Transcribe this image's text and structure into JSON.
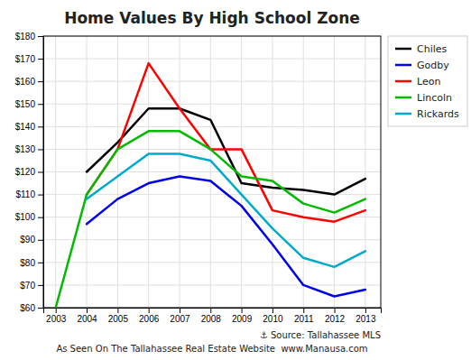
{
  "chart_data": {
    "type": "line",
    "title": "Home Values By High School Zone",
    "x": [
      2003,
      2004,
      2005,
      2006,
      2007,
      2008,
      2009,
      2010,
      2011,
      2012,
      2013
    ],
    "series": [
      {
        "name": "Chiles",
        "color": "#000000",
        "values": [
          null,
          120,
          133,
          148,
          148,
          143,
          115,
          113,
          112,
          110,
          117
        ]
      },
      {
        "name": "Godby",
        "color": "#0000ee",
        "values": [
          null,
          97,
          108,
          115,
          118,
          116,
          105,
          88,
          70,
          65,
          68
        ]
      },
      {
        "name": "Leon",
        "color": "#ff0000",
        "values": [
          null,
          110,
          130,
          168,
          148,
          130,
          130,
          103,
          100,
          98,
          103
        ]
      },
      {
        "name": "Lincoln",
        "color": "#00bb00",
        "values": [
          60,
          110,
          130,
          138,
          138,
          130,
          118,
          116,
          106,
          102,
          108
        ]
      },
      {
        "name": "Rickards",
        "color": "#00aacc",
        "values": [
          null,
          108,
          118,
          128,
          128,
          125,
          110,
          95,
          82,
          78,
          85
        ]
      }
    ],
    "xlim": [
      2002.6,
      2013.5
    ],
    "xticks": [
      2003,
      2004,
      2005,
      2006,
      2007,
      2008,
      2009,
      2010,
      2011,
      2012,
      2013
    ],
    "ylim": [
      60,
      180
    ],
    "yticks": [
      {
        "value": 60,
        "label": "$60"
      },
      {
        "value": 70,
        "label": "$70"
      },
      {
        "value": 80,
        "label": "$80"
      },
      {
        "value": 90,
        "label": "$90"
      },
      {
        "value": 100,
        "label": "$100"
      },
      {
        "value": 110,
        "label": "$110"
      },
      {
        "value": 120,
        "label": "$120"
      },
      {
        "value": 130,
        "label": "$130"
      },
      {
        "value": 140,
        "label": "$140"
      },
      {
        "value": 150,
        "label": "$150"
      },
      {
        "value": 160,
        "label": "$160"
      },
      {
        "value": 170,
        "label": "$170"
      },
      {
        "value": 180,
        "label": "$180"
      }
    ],
    "grid": true,
    "legend": "upper right",
    "annotations": [
      "⚓ Source: Tallahassee MLS",
      "As Seen On The Tallahassee Real Estate Website  www.Manausa.com"
    ]
  }
}
